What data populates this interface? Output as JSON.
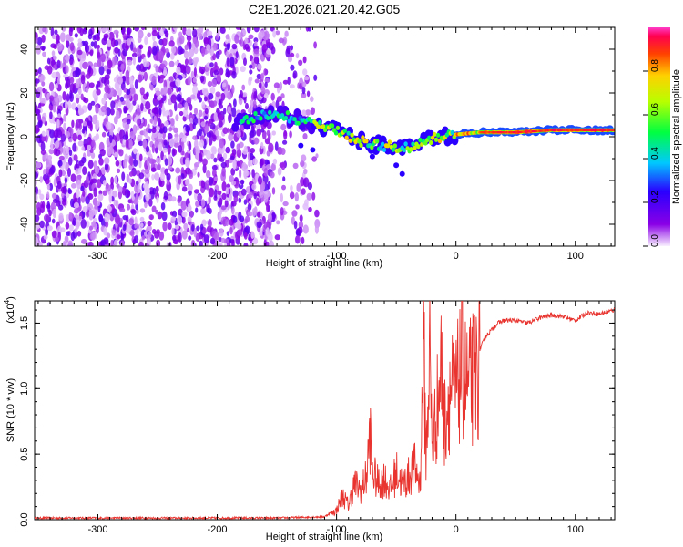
{
  "title": "C2E1.2026.021.20.42.G05",
  "colorbar": {
    "label": "Normalized spectral amplitude",
    "ticks": [
      "0.0",
      "0.2",
      "0.4",
      "0.6",
      "0.8"
    ],
    "tick_values": [
      0,
      0.2,
      0.4,
      0.6,
      0.8
    ],
    "range": [
      0,
      1
    ]
  },
  "chart_data": [
    {
      "type": "heatmap",
      "title": "",
      "xlabel": "Height of straight line (km)",
      "ylabel": "Frequency (Hz)",
      "xlim": [
        -353,
        133
      ],
      "ylim": [
        -50,
        50
      ],
      "xticks": [
        -300,
        -200,
        -100,
        0,
        100
      ],
      "xtick_labels": [
        "-300",
        "-200",
        "-100",
        "0",
        "100"
      ],
      "yticks": [
        -40,
        -20,
        0,
        20,
        40
      ],
      "ytick_labels": [
        "-40",
        "-20",
        "0",
        "20",
        "40"
      ],
      "description_series": [
        {
          "name": "signal-ridge-center-hz",
          "x": [
            -180,
            -160,
            -140,
            -120,
            -100,
            -80,
            -60,
            -40,
            -20,
            0,
            20,
            50,
            80,
            110,
            133
          ],
          "values": [
            7,
            10,
            9,
            6,
            3,
            -2,
            -4,
            -5,
            -1,
            1,
            2,
            2,
            3,
            3,
            3
          ]
        }
      ]
    },
    {
      "type": "line",
      "title": "",
      "xlabel": "Height of straight line (km)",
      "ylabel": "SNR (10 * v/v)",
      "multiplier_label": "(x10",
      "multiplier_exp": "4",
      "multiplier_close": ")",
      "xlim": [
        -353,
        133
      ],
      "ylim": [
        0,
        1.67
      ],
      "xticks": [
        -300,
        -200,
        -100,
        0,
        100
      ],
      "xtick_labels": [
        "-300",
        "-200",
        "-100",
        "0",
        "100"
      ],
      "yticks": [
        0,
        0.5,
        1.0,
        1.5
      ],
      "ytick_labels": [
        "0.0",
        "0.5",
        "1.0",
        "1.5"
      ],
      "color": "#e8332e",
      "series": [
        {
          "name": "SNR",
          "x": [
            -353,
            -300,
            -250,
            -200,
            -150,
            -110,
            -100,
            -95,
            -90,
            -85,
            -80,
            -75,
            -72,
            -70,
            -65,
            -60,
            -55,
            -50,
            -45,
            -40,
            -35,
            -30,
            -27,
            -25,
            -22,
            -20,
            -15,
            -12,
            -10,
            -5,
            0,
            5,
            10,
            15,
            20,
            25,
            30,
            35,
            40,
            50,
            60,
            70,
            80,
            90,
            100,
            105,
            110,
            120,
            133
          ],
          "values": [
            0.01,
            0.01,
            0.01,
            0.01,
            0.01,
            0.02,
            0.08,
            0.2,
            0.12,
            0.3,
            0.25,
            0.35,
            0.74,
            0.4,
            0.3,
            0.35,
            0.25,
            0.4,
            0.3,
            0.35,
            0.45,
            0.3,
            1.45,
            0.5,
            1.45,
            0.6,
            1.0,
            1.3,
            0.8,
            1.1,
            1.05,
            1.3,
            1.1,
            1.2,
            1.3,
            1.4,
            1.45,
            1.5,
            1.52,
            1.52,
            1.5,
            1.54,
            1.56,
            1.55,
            1.52,
            1.55,
            1.58,
            1.57,
            1.6
          ]
        }
      ]
    }
  ]
}
